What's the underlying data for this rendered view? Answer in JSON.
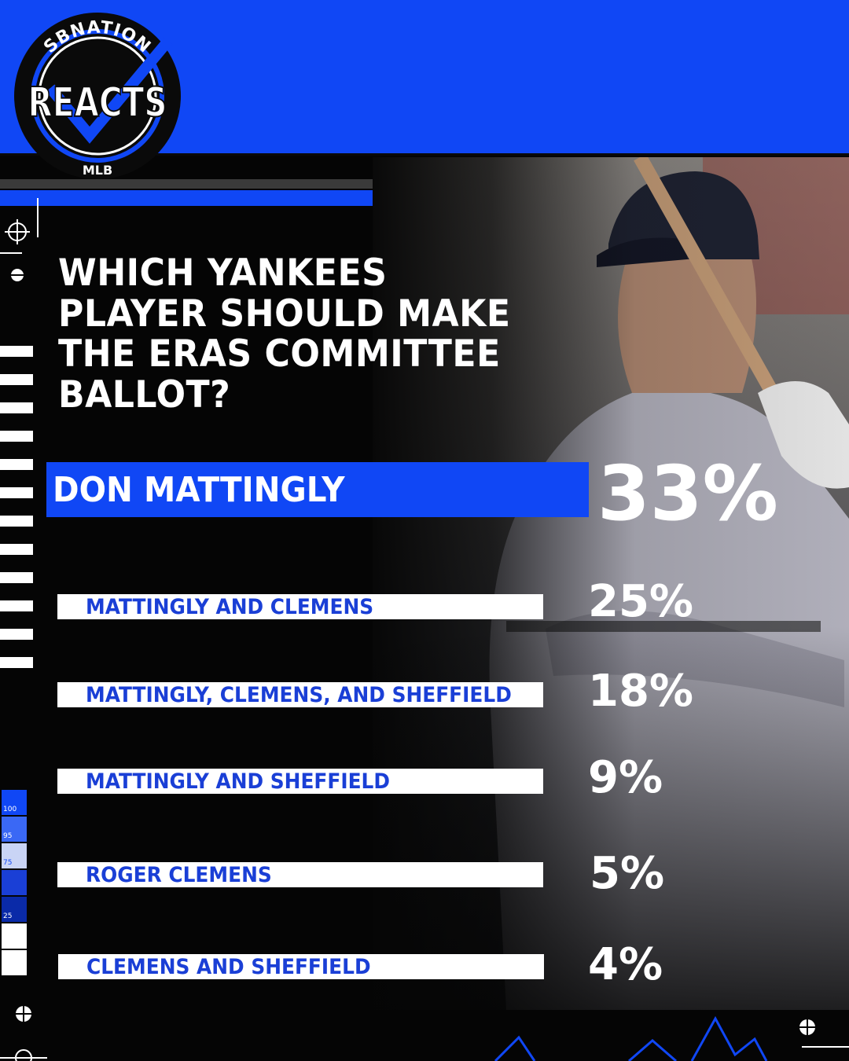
{
  "brand": {
    "top_text": "SBNATION",
    "main_text": "REACTS",
    "sub_text": "MLB",
    "accent_color": "#1047f5"
  },
  "question": "WHICH YANKEES PLAYER SHOULD MAKE THE ERAS COMMITTEE BALLOT?",
  "scale_legend": [
    "100",
    "95",
    "75",
    "25"
  ],
  "chart_data": {
    "type": "table",
    "title": "WHICH YANKEES PLAYER SHOULD MAKE THE ERAS COMMITTEE BALLOT?",
    "categories": [
      "DON MATTINGLY",
      "MATTINGLY AND CLEMENS",
      "MATTINGLY, CLEMENS, AND SHEFFIELD",
      "MATTINGLY AND SHEFFIELD",
      "ROGER CLEMENS",
      "CLEMENS AND SHEFFIELD"
    ],
    "values": [
      33,
      25,
      18,
      9,
      5,
      4
    ],
    "value_labels": [
      "33%",
      "25%",
      "18%",
      "9%",
      "5%",
      "4%"
    ],
    "unit": "%"
  }
}
